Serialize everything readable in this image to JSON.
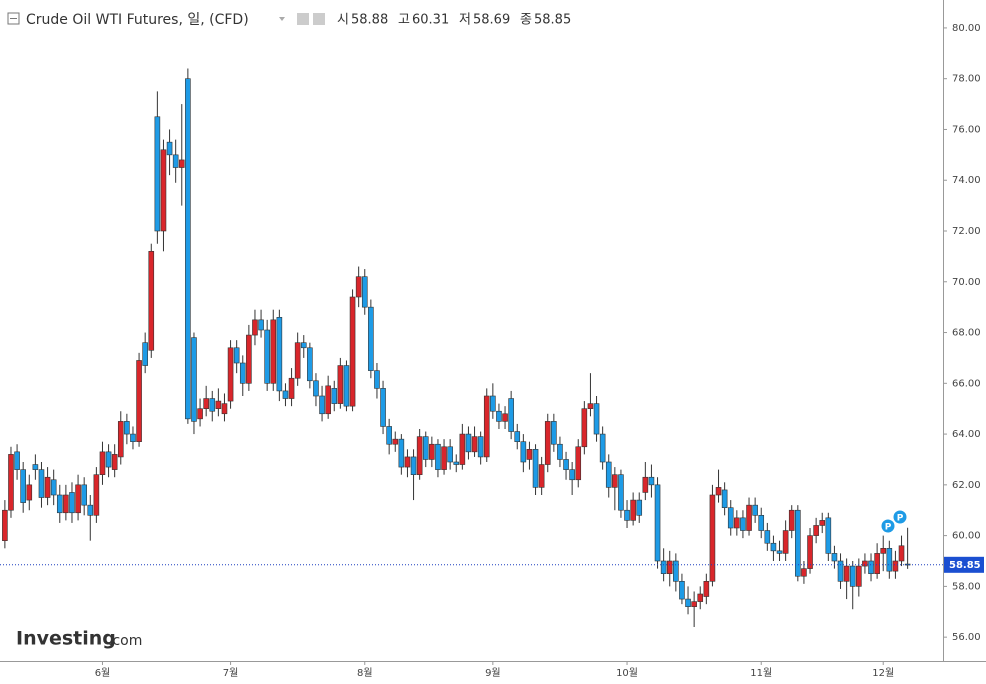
{
  "chart_data": {
    "type": "candlestick",
    "title": "Crude Oil WTI Futures, 일, (CFD)",
    "ohlc_header": [
      {
        "prefix": "시",
        "value": 58.88
      },
      {
        "prefix": "고",
        "value": 60.31
      },
      {
        "prefix": "저",
        "value": 58.69
      },
      {
        "prefix": "종",
        "value": 58.85
      }
    ],
    "logo": "Investing",
    "logo_suffix": ".com",
    "event_labels": [
      "P",
      "P"
    ],
    "last_price": 58.85,
    "up_color": "#d9262b",
    "down_color": "#1e9be6",
    "grid": false,
    "xlim": [
      -0.8,
      153.8
    ],
    "xticks": [
      {
        "value": 16,
        "label": "6월"
      },
      {
        "value": 37,
        "label": "7월"
      },
      {
        "value": 59,
        "label": "8월"
      },
      {
        "value": 80,
        "label": "9월"
      },
      {
        "value": 102,
        "label": "10월"
      },
      {
        "value": 124,
        "label": "11월"
      },
      {
        "value": 144,
        "label": "12월"
      }
    ],
    "ylim": [
      55.1,
      81.1
    ],
    "yticks": [
      {
        "value": 56,
        "label": "56.00"
      },
      {
        "value": 58,
        "label": "58.00"
      },
      {
        "value": 60,
        "label": "60.00"
      },
      {
        "value": 62,
        "label": "62.00"
      },
      {
        "value": 64,
        "label": "64.00"
      },
      {
        "value": 66,
        "label": "66.00"
      },
      {
        "value": 68,
        "label": "68.00"
      },
      {
        "value": 70,
        "label": "70.00"
      },
      {
        "value": 72,
        "label": "72.00"
      },
      {
        "value": 74,
        "label": "74.00"
      },
      {
        "value": 76,
        "label": "76.00"
      },
      {
        "value": 78,
        "label": "78.00"
      },
      {
        "value": 80,
        "label": "80.00"
      }
    ],
    "open": [
      59.8,
      61.0,
      63.3,
      62.6,
      61.4,
      62.8,
      62.6,
      61.5,
      62.2,
      61.6,
      60.9,
      61.7,
      60.9,
      62.0,
      61.2,
      60.8,
      62.4,
      63.3,
      62.6,
      63.1,
      64.5,
      64.0,
      63.7,
      67.6,
      67.3,
      76.5,
      72.0,
      75.5,
      75.0,
      74.5,
      78.0,
      67.8,
      64.6,
      65.0,
      65.4,
      65.0,
      64.8,
      65.3,
      67.4,
      66.8,
      66.0,
      67.9,
      68.5,
      68.1,
      66.0,
      68.6,
      65.7,
      65.4,
      66.2,
      67.6,
      67.4,
      66.1,
      65.5,
      64.8,
      65.8,
      65.2,
      66.7,
      65.1,
      69.4,
      70.2,
      69.0,
      66.5,
      65.8,
      64.3,
      63.6,
      63.8,
      62.7,
      63.1,
      62.4,
      63.9,
      63.0,
      63.6,
      62.6,
      63.5,
      62.9,
      62.8,
      64.0,
      63.3,
      63.9,
      63.1,
      65.5,
      64.9,
      64.5,
      65.4,
      64.1,
      63.7,
      63.0,
      63.4,
      61.9,
      62.8,
      64.5,
      63.6,
      63.0,
      62.6,
      62.2,
      63.5,
      65.0,
      65.2,
      64.0,
      62.9,
      61.9,
      62.4,
      61.0,
      60.6,
      61.4,
      61.7,
      62.3,
      62.0,
      59.0,
      58.5,
      59.0,
      58.2,
      57.5,
      57.2,
      57.4,
      57.6,
      58.2,
      61.6,
      61.8,
      61.1,
      60.3,
      60.7,
      60.2,
      61.2,
      60.8,
      60.2,
      59.7,
      59.4,
      59.3,
      60.2,
      61.0,
      58.4,
      58.7,
      60.0,
      60.4,
      60.7,
      59.3,
      59.0,
      58.2,
      58.8,
      58.0,
      58.8,
      59.0,
      58.5,
      59.3,
      59.5,
      58.6,
      59.0,
      58.88
    ],
    "high": [
      61.4,
      63.5,
      63.6,
      62.9,
      62.4,
      63.2,
      62.9,
      62.7,
      62.6,
      62.0,
      62.0,
      62.1,
      62.4,
      62.3,
      61.6,
      62.7,
      63.7,
      63.6,
      63.6,
      64.9,
      64.8,
      64.3,
      67.2,
      68.0,
      71.5,
      77.5,
      75.6,
      76.0,
      75.6,
      77.0,
      78.4,
      68.0,
      65.4,
      65.9,
      65.7,
      65.8,
      65.6,
      67.7,
      67.7,
      67.1,
      68.3,
      68.9,
      68.9,
      68.5,
      68.9,
      68.9,
      66.0,
      66.6,
      68.0,
      67.9,
      67.6,
      66.4,
      65.9,
      66.3,
      66.1,
      67.0,
      66.9,
      69.7,
      70.6,
      70.5,
      69.3,
      66.8,
      66.1,
      64.6,
      64.1,
      64.0,
      63.4,
      63.4,
      64.2,
      64.1,
      63.9,
      63.8,
      63.8,
      63.8,
      63.2,
      64.4,
      64.3,
      64.3,
      64.1,
      65.8,
      66.0,
      65.2,
      65.1,
      65.7,
      64.4,
      64.0,
      63.7,
      63.6,
      63.1,
      64.8,
      64.8,
      63.9,
      63.3,
      62.9,
      63.8,
      65.3,
      66.4,
      65.5,
      64.3,
      63.2,
      62.7,
      62.6,
      61.4,
      61.7,
      61.7,
      62.9,
      62.8,
      62.3,
      59.5,
      59.4,
      59.3,
      58.5,
      58.0,
      57.8,
      58.0,
      58.5,
      62.0,
      62.6,
      62.1,
      61.4,
      61.0,
      61.0,
      61.5,
      61.5,
      61.1,
      60.5,
      60.0,
      59.8,
      60.6,
      61.2,
      61.2,
      59.0,
      60.3,
      60.7,
      60.9,
      60.9,
      59.6,
      59.3,
      59.1,
      59.0,
      59.1,
      59.3,
      59.3,
      59.7,
      60.0,
      59.8,
      59.4,
      60.0,
      60.31
    ],
    "low": [
      59.5,
      60.7,
      62.2,
      60.9,
      61.0,
      62.2,
      61.1,
      61.2,
      61.2,
      60.5,
      60.6,
      60.5,
      60.6,
      60.8,
      59.8,
      60.5,
      62.0,
      62.3,
      62.3,
      62.8,
      63.6,
      63.4,
      63.5,
      66.4,
      67.0,
      71.5,
      71.2,
      74.2,
      73.9,
      73.0,
      64.4,
      64.0,
      64.3,
      64.7,
      64.5,
      64.7,
      64.5,
      65.0,
      66.4,
      65.5,
      65.7,
      67.5,
      67.8,
      65.7,
      65.7,
      65.3,
      65.1,
      65.1,
      65.9,
      67.0,
      65.8,
      65.1,
      64.5,
      64.6,
      64.9,
      65.0,
      64.9,
      64.9,
      69.0,
      68.7,
      66.2,
      65.4,
      64.0,
      63.2,
      63.3,
      62.4,
      62.3,
      61.4,
      62.2,
      62.7,
      62.7,
      62.3,
      62.4,
      62.6,
      62.5,
      62.6,
      63.0,
      63.1,
      62.8,
      62.9,
      64.6,
      64.2,
      64.2,
      63.8,
      63.4,
      62.5,
      62.6,
      61.6,
      61.6,
      62.5,
      63.3,
      62.7,
      62.2,
      61.6,
      61.9,
      63.2,
      64.7,
      63.7,
      62.6,
      61.5,
      61.0,
      60.7,
      60.3,
      60.4,
      60.5,
      61.4,
      61.5,
      58.7,
      58.2,
      58.0,
      57.8,
      57.3,
      56.9,
      56.4,
      57.1,
      57.3,
      58.0,
      61.3,
      60.8,
      60.0,
      60.0,
      59.9,
      60.0,
      60.5,
      59.9,
      59.4,
      59.0,
      59.0,
      59.0,
      59.9,
      58.2,
      58.1,
      58.5,
      59.7,
      60.1,
      59.0,
      58.7,
      57.9,
      57.5,
      57.1,
      57.6,
      58.5,
      58.2,
      58.3,
      58.6,
      58.3,
      58.3,
      58.8,
      58.69
    ],
    "close": [
      61.0,
      63.2,
      62.6,
      61.3,
      62.0,
      62.6,
      61.5,
      62.3,
      61.6,
      60.9,
      61.6,
      60.9,
      62.0,
      61.2,
      60.8,
      62.4,
      63.3,
      62.7,
      63.2,
      64.5,
      64.0,
      63.7,
      66.9,
      66.7,
      71.2,
      72.0,
      75.2,
      75.0,
      74.5,
      74.8,
      64.6,
      64.5,
      65.0,
      65.4,
      64.9,
      65.3,
      65.2,
      67.4,
      66.8,
      66.0,
      67.9,
      68.5,
      68.1,
      66.0,
      68.5,
      65.7,
      65.4,
      66.2,
      67.6,
      67.4,
      66.1,
      65.5,
      64.8,
      65.9,
      65.2,
      66.7,
      65.1,
      69.4,
      70.2,
      69.0,
      66.5,
      65.8,
      64.3,
      63.6,
      63.8,
      62.7,
      63.1,
      62.4,
      63.9,
      63.0,
      63.6,
      62.6,
      63.5,
      62.9,
      62.8,
      64.0,
      63.3,
      63.9,
      63.1,
      65.5,
      64.9,
      64.5,
      64.8,
      64.1,
      63.7,
      62.9,
      63.4,
      61.9,
      62.8,
      64.5,
      63.6,
      63.0,
      62.6,
      62.2,
      63.5,
      65.0,
      65.2,
      64.0,
      62.9,
      61.9,
      62.4,
      61.0,
      60.6,
      61.4,
      60.8,
      62.3,
      62.0,
      59.0,
      58.5,
      59.0,
      58.2,
      57.5,
      57.2,
      57.4,
      57.7,
      58.2,
      61.6,
      61.9,
      61.1,
      60.3,
      60.7,
      60.2,
      61.2,
      60.8,
      60.2,
      59.7,
      59.4,
      59.3,
      60.2,
      61.0,
      58.4,
      58.7,
      60.0,
      60.4,
      60.6,
      59.3,
      59.0,
      58.2,
      58.8,
      58.0,
      58.8,
      59.0,
      58.5,
      59.3,
      59.5,
      58.6,
      59.0,
      59.6,
      58.85
    ]
  }
}
